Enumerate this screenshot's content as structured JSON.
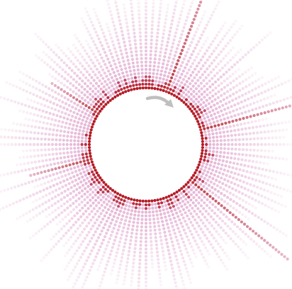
{
  "chart_data": {
    "type": "radial-dot-plot",
    "title": "",
    "direction_indicator": "clockwise-arrow",
    "spoke_count": 120,
    "value_scale": "dots-per-spoke",
    "ylim": [
      0,
      40
    ],
    "long_spikes": [
      {
        "angle_deg": -70,
        "value": 40
      },
      {
        "angle_deg": -15,
        "value": 30
      },
      {
        "angle_deg": 40,
        "value": 35
      },
      {
        "angle_deg": 165,
        "value": 18
      },
      {
        "angle_deg": 212,
        "value": 16
      }
    ],
    "colors": {
      "inner_dot": "#b0101a",
      "outer_dot": "#cf78b4",
      "arrow": "#bfbfbf",
      "background": "#ffffff"
    }
  }
}
